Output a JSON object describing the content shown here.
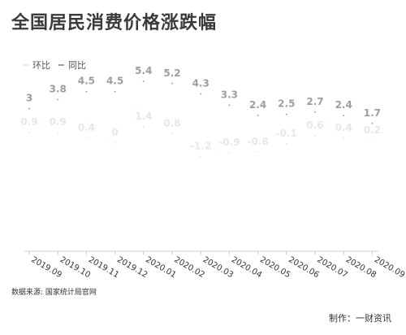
{
  "chart_data": {
    "type": "line",
    "title": "全国居民消费价格涨跌幅",
    "categories": [
      "2019.09",
      "2019.10",
      "2019.11",
      "2019.12",
      "2020.01",
      "2020.02",
      "2020.03",
      "2020.04",
      "2020.05",
      "2020.06",
      "2020.07",
      "2020.08",
      "2020.09"
    ],
    "series": [
      {
        "name": "同比",
        "color": "#9e9e9e",
        "values": [
          3,
          3.8,
          4.5,
          4.5,
          5.4,
          5.2,
          4.3,
          3.3,
          2.4,
          2.5,
          2.7,
          2.4,
          1.7
        ]
      },
      {
        "name": "环比",
        "color": "#e1ebe4",
        "values": [
          0.9,
          0.9,
          0.4,
          0,
          1.4,
          0.8,
          -1.2,
          -0.9,
          -0.8,
          -0.1,
          0.6,
          0.4,
          0.2
        ]
      }
    ],
    "legend": "top-left",
    "grid": false
  },
  "legend_items": [
    {
      "label": "环比",
      "color": "#e1ebe4"
    },
    {
      "label": "同比",
      "color": "#9e9e9e"
    }
  ],
  "footer": {
    "source": "数据来源: 国家统计局官网",
    "credit": "制作：一财资讯"
  }
}
